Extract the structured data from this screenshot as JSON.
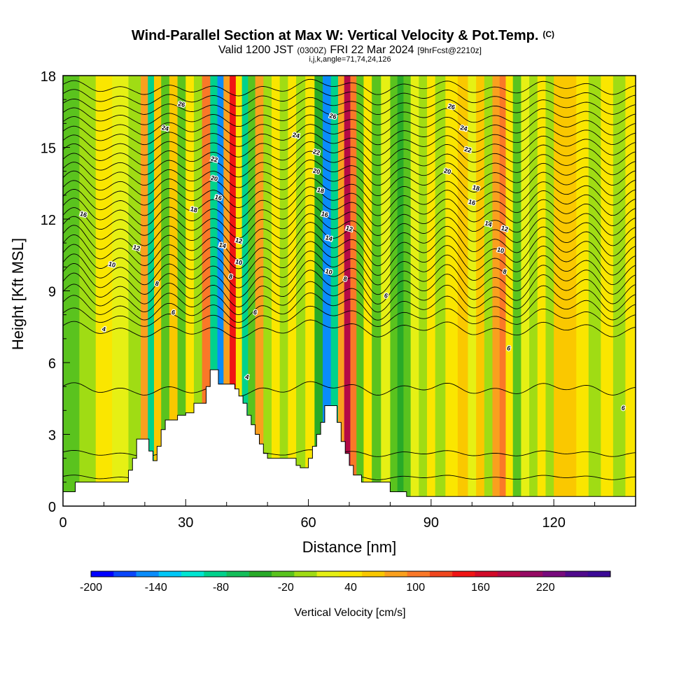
{
  "chart_data": {
    "type": "heatmap",
    "title": "Wind-Parallel Section at Max W: Vertical Velocity & Pot.Temp.",
    "title_suffix": "(C)",
    "subtitle_parts": [
      "Valid 1200 JST",
      "(0300Z)",
      "FRI 22 Mar 2024",
      "[9hrFcst@2210z]"
    ],
    "subtitle2": "i,j,k,angle=71,74,24,126",
    "xlabel": "Distance [nm]",
    "ylabel": "Height [Kft MSL]",
    "xlim": [
      0,
      140
    ],
    "ylim": [
      0,
      18
    ],
    "x_ticks": [
      "0",
      "30",
      "60",
      "90",
      "120"
    ],
    "x_tick_values": [
      0,
      30,
      60,
      90,
      120
    ],
    "y_ticks": [
      "0",
      "3",
      "6",
      "9",
      "12",
      "15",
      "18"
    ],
    "y_tick_values": [
      0,
      3,
      6,
      9,
      12,
      15,
      18
    ],
    "colorbar": {
      "label": "Vertical Velocity [cm/s]",
      "min": -200,
      "max": 260,
      "step": 20,
      "tick_labels": [
        "-200",
        "-140",
        "-80",
        "-20",
        "40",
        "100",
        "160",
        "220"
      ],
      "tick_values": [
        -200,
        -140,
        -80,
        -20,
        40,
        100,
        160,
        220
      ],
      "colors": [
        "#0000ff",
        "#0a46fa",
        "#0a8cfa",
        "#00c8f8",
        "#00e6d2",
        "#00d28c",
        "#14be5a",
        "#28aa28",
        "#5ac31e",
        "#a0dc14",
        "#e6f014",
        "#fae600",
        "#fac800",
        "#faa01e",
        "#fa7828",
        "#f0461e",
        "#f01414",
        "#d20a28",
        "#b40a46",
        "#960a64",
        "#780a7d",
        "#500a8c",
        "#3c0a96"
      ]
    },
    "velocity_bands": [
      {
        "x": 2,
        "w": -25
      },
      {
        "x": 6,
        "w": -5
      },
      {
        "x": 10,
        "w": 25
      },
      {
        "x": 14,
        "w": 5
      },
      {
        "x": 18,
        "w": -10
      },
      {
        "x": 20,
        "w": 60
      },
      {
        "x": 21.5,
        "w": -100
      },
      {
        "x": 23,
        "w": 50
      },
      {
        "x": 25,
        "w": -30
      },
      {
        "x": 27,
        "w": 40
      },
      {
        "x": 29,
        "w": -40
      },
      {
        "x": 31,
        "w": 20
      },
      {
        "x": 33,
        "w": -5
      },
      {
        "x": 35,
        "w": 80
      },
      {
        "x": 37,
        "w": -90
      },
      {
        "x": 38.5,
        "w": -160
      },
      {
        "x": 40,
        "w": 60
      },
      {
        "x": 41.5,
        "w": 120
      },
      {
        "x": 43,
        "w": 30
      },
      {
        "x": 44.5,
        "w": -90
      },
      {
        "x": 46,
        "w": -40
      },
      {
        "x": 48,
        "w": 60
      },
      {
        "x": 50,
        "w": -10
      },
      {
        "x": 52,
        "w": 20
      },
      {
        "x": 54,
        "w": -20
      },
      {
        "x": 56,
        "w": 25
      },
      {
        "x": 58,
        "w": -10
      },
      {
        "x": 60.5,
        "w": 30
      },
      {
        "x": 62.5,
        "w": -60
      },
      {
        "x": 64.5,
        "w": -150
      },
      {
        "x": 66.5,
        "w": -100
      },
      {
        "x": 68,
        "w": 60
      },
      {
        "x": 69.5,
        "w": 170
      },
      {
        "x": 71,
        "w": 80
      },
      {
        "x": 72.5,
        "w": -40
      },
      {
        "x": 74.5,
        "w": 20
      },
      {
        "x": 76.5,
        "w": -30
      },
      {
        "x": 79,
        "w": 10
      },
      {
        "x": 81,
        "w": -40
      },
      {
        "x": 82.5,
        "w": -60
      },
      {
        "x": 84,
        "w": -30
      },
      {
        "x": 86,
        "w": 10
      },
      {
        "x": 88,
        "w": -20
      },
      {
        "x": 90,
        "w": 20
      },
      {
        "x": 92,
        "w": -10
      },
      {
        "x": 95,
        "w": 30
      },
      {
        "x": 98,
        "w": 50
      },
      {
        "x": 100,
        "w": 10
      },
      {
        "x": 102,
        "w": 40
      },
      {
        "x": 104,
        "w": -20
      },
      {
        "x": 106,
        "w": 60
      },
      {
        "x": 107.5,
        "w": 90
      },
      {
        "x": 109,
        "w": 20
      },
      {
        "x": 111,
        "w": -30
      },
      {
        "x": 113,
        "w": 10
      },
      {
        "x": 115,
        "w": -20
      },
      {
        "x": 117,
        "w": 20
      },
      {
        "x": 119,
        "w": -10
      },
      {
        "x": 121,
        "w": 45
      },
      {
        "x": 124,
        "w": 55
      },
      {
        "x": 127,
        "w": 20
      },
      {
        "x": 130,
        "w": -10
      },
      {
        "x": 133,
        "w": 30
      },
      {
        "x": 136,
        "w": -5
      },
      {
        "x": 139,
        "w": 20
      }
    ],
    "terrain": [
      [
        0,
        0.6
      ],
      [
        3,
        0.6
      ],
      [
        3,
        1.0
      ],
      [
        6,
        1.0
      ],
      [
        10,
        1.0
      ],
      [
        12,
        1.0
      ],
      [
        16,
        1.0
      ],
      [
        16,
        1.5
      ],
      [
        17,
        1.5
      ],
      [
        17,
        2.0
      ],
      [
        18,
        2.0
      ],
      [
        18,
        2.8
      ],
      [
        21,
        2.8
      ],
      [
        21,
        2.3
      ],
      [
        22,
        2.3
      ],
      [
        22,
        1.9
      ],
      [
        23,
        1.9
      ],
      [
        23,
        2.5
      ],
      [
        24,
        2.5
      ],
      [
        24,
        3.2
      ],
      [
        25,
        3.2
      ],
      [
        25,
        3.6
      ],
      [
        26,
        3.6
      ],
      [
        26,
        3.6
      ],
      [
        28,
        3.6
      ],
      [
        28,
        3.8
      ],
      [
        30,
        3.8
      ],
      [
        30,
        3.9
      ],
      [
        32,
        3.9
      ],
      [
        32,
        4.3
      ],
      [
        35,
        4.3
      ],
      [
        35,
        5.0
      ],
      [
        36,
        5.0
      ],
      [
        36,
        5.7
      ],
      [
        38,
        5.7
      ],
      [
        38,
        5.1
      ],
      [
        42,
        5.1
      ],
      [
        42,
        4.9
      ],
      [
        43,
        4.9
      ],
      [
        43,
        4.6
      ],
      [
        44,
        4.6
      ],
      [
        44,
        4.3
      ],
      [
        45,
        4.3
      ],
      [
        45,
        3.8
      ],
      [
        46,
        3.8
      ],
      [
        46,
        3.4
      ],
      [
        47,
        3.4
      ],
      [
        47,
        3.0
      ],
      [
        48,
        3.0
      ],
      [
        48,
        2.6
      ],
      [
        49,
        2.6
      ],
      [
        49,
        2.2
      ],
      [
        50,
        2.2
      ],
      [
        50,
        2.0
      ],
      [
        57,
        2.0
      ],
      [
        57,
        1.7
      ],
      [
        58,
        1.7
      ],
      [
        58,
        1.6
      ],
      [
        60,
        1.6
      ],
      [
        60,
        2.0
      ],
      [
        61,
        2.0
      ],
      [
        61,
        2.5
      ],
      [
        62,
        2.5
      ],
      [
        62,
        3.0
      ],
      [
        63,
        3.0
      ],
      [
        63,
        3.5
      ],
      [
        64,
        3.5
      ],
      [
        64,
        4.2
      ],
      [
        67,
        4.2
      ],
      [
        67,
        3.5
      ],
      [
        68,
        3.5
      ],
      [
        68,
        2.7
      ],
      [
        69,
        2.7
      ],
      [
        69,
        2.2
      ],
      [
        70,
        2.2
      ],
      [
        70,
        1.7
      ],
      [
        71,
        1.7
      ],
      [
        71,
        1.3
      ],
      [
        73,
        1.3
      ],
      [
        73,
        1.0
      ],
      [
        80,
        1.0
      ],
      [
        80,
        0.6
      ],
      [
        84,
        0.6
      ],
      [
        84,
        0.4
      ],
      [
        88,
        0.4
      ],
      [
        140,
        0.4
      ]
    ],
    "isentropes": [
      {
        "y": 1.2,
        "label": "",
        "amp": 0.15
      },
      {
        "y": 2.2,
        "label": "",
        "amp": 0.2
      },
      {
        "y": 4.9,
        "label": "4",
        "amp": 0.4
      },
      {
        "y": 7.4,
        "label": "4",
        "amp": 0.5
      },
      {
        "y": 7.9,
        "label": "",
        "amp": 0.6
      },
      {
        "y": 8.3,
        "label": "6",
        "amp": 0.8
      },
      {
        "y": 8.7,
        "label": "",
        "amp": 0.9
      },
      {
        "y": 9.1,
        "label": "",
        "amp": 1.0
      },
      {
        "y": 9.5,
        "label": "8",
        "amp": 1.0
      },
      {
        "y": 9.9,
        "label": "",
        "amp": 1.0
      },
      {
        "y": 10.3,
        "label": "10",
        "amp": 1.0
      },
      {
        "y": 10.7,
        "label": "",
        "amp": 1.0
      },
      {
        "y": 11.1,
        "label": "12",
        "amp": 1.0
      },
      {
        "y": 11.5,
        "label": "",
        "amp": 0.95
      },
      {
        "y": 11.9,
        "label": "14",
        "amp": 0.9
      },
      {
        "y": 12.3,
        "label": "",
        "amp": 0.9
      },
      {
        "y": 12.7,
        "label": "16",
        "amp": 0.85
      },
      {
        "y": 13.1,
        "label": "",
        "amp": 0.8
      },
      {
        "y": 13.5,
        "label": "18",
        "amp": 0.8
      },
      {
        "y": 13.9,
        "label": "",
        "amp": 0.75
      },
      {
        "y": 14.3,
        "label": "20",
        "amp": 0.7
      },
      {
        "y": 14.7,
        "label": "",
        "amp": 0.7
      },
      {
        "y": 15.1,
        "label": "22",
        "amp": 0.65
      },
      {
        "y": 15.5,
        "label": "",
        "amp": 0.6
      },
      {
        "y": 15.9,
        "label": "24",
        "amp": 0.6
      },
      {
        "y": 16.3,
        "label": "",
        "amp": 0.55
      },
      {
        "y": 16.7,
        "label": "",
        "amp": 0.5
      },
      {
        "y": 17.1,
        "label": "26",
        "amp": 0.5
      },
      {
        "y": 17.5,
        "label": "",
        "amp": 0.45
      }
    ],
    "contour_labels": [
      {
        "text": "26",
        "x": 29,
        "y": 16.8
      },
      {
        "text": "24",
        "x": 25,
        "y": 15.8
      },
      {
        "text": "22",
        "x": 37,
        "y": 14.5
      },
      {
        "text": "20",
        "x": 37,
        "y": 13.7
      },
      {
        "text": "18",
        "x": 32,
        "y": 12.4
      },
      {
        "text": "16",
        "x": 38,
        "y": 12.9
      },
      {
        "text": "16",
        "x": 5,
        "y": 12.2
      },
      {
        "text": "14",
        "x": 39,
        "y": 10.9
      },
      {
        "text": "12",
        "x": 18,
        "y": 10.8
      },
      {
        "text": "12",
        "x": 43,
        "y": 11.1
      },
      {
        "text": "10",
        "x": 12,
        "y": 10.1
      },
      {
        "text": "10",
        "x": 43,
        "y": 10.2
      },
      {
        "text": "8",
        "x": 23,
        "y": 9.3
      },
      {
        "text": "8",
        "x": 41,
        "y": 9.6
      },
      {
        "text": "6",
        "x": 27,
        "y": 8.1
      },
      {
        "text": "6",
        "x": 47,
        "y": 8.1
      },
      {
        "text": "4",
        "x": 10,
        "y": 7.4
      },
      {
        "text": "4",
        "x": 45,
        "y": 5.4
      },
      {
        "text": "26",
        "x": 66,
        "y": 16.3
      },
      {
        "text": "24",
        "x": 57,
        "y": 15.5
      },
      {
        "text": "22",
        "x": 62,
        "y": 14.8
      },
      {
        "text": "20",
        "x": 62,
        "y": 14.0
      },
      {
        "text": "18",
        "x": 63,
        "y": 13.2
      },
      {
        "text": "16",
        "x": 64,
        "y": 12.2
      },
      {
        "text": "14",
        "x": 65,
        "y": 11.2
      },
      {
        "text": "12",
        "x": 70,
        "y": 11.6
      },
      {
        "text": "10",
        "x": 65,
        "y": 9.8
      },
      {
        "text": "8",
        "x": 69,
        "y": 9.5
      },
      {
        "text": "6",
        "x": 79,
        "y": 8.8
      },
      {
        "text": "26",
        "x": 95,
        "y": 16.7
      },
      {
        "text": "24",
        "x": 98,
        "y": 15.8
      },
      {
        "text": "22",
        "x": 99,
        "y": 14.9
      },
      {
        "text": "20",
        "x": 94,
        "y": 14.0
      },
      {
        "text": "18",
        "x": 101,
        "y": 13.3
      },
      {
        "text": "16",
        "x": 100,
        "y": 12.7
      },
      {
        "text": "14",
        "x": 104,
        "y": 11.8
      },
      {
        "text": "12",
        "x": 108,
        "y": 11.6
      },
      {
        "text": "10",
        "x": 107,
        "y": 10.7
      },
      {
        "text": "8",
        "x": 108,
        "y": 9.8
      },
      {
        "text": "6",
        "x": 109,
        "y": 6.6
      },
      {
        "text": "6",
        "x": 137,
        "y": 4.1
      }
    ]
  }
}
